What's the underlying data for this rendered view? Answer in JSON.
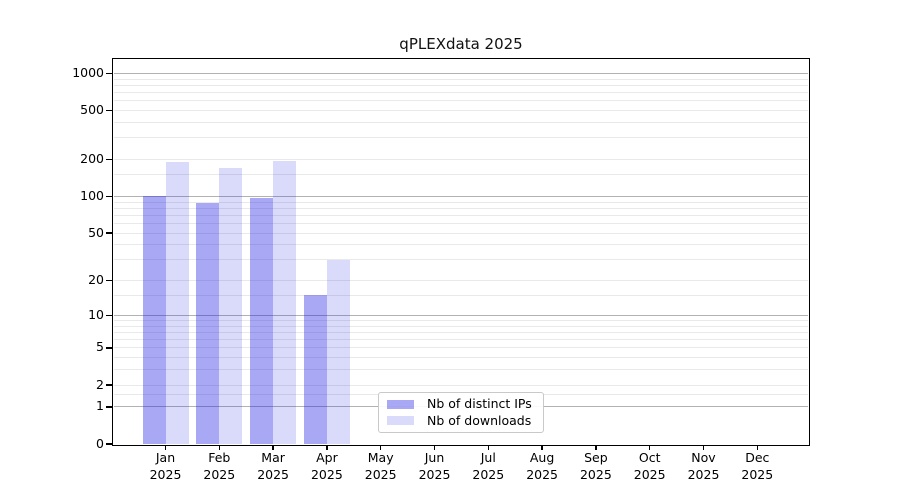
{
  "title": "qPLEXdata 2025",
  "chart_data": {
    "type": "bar",
    "title": "qPLEXdata 2025",
    "categories": [
      "Jan",
      "Feb",
      "Mar",
      "Apr",
      "May",
      "Jun",
      "Jul",
      "Aug",
      "Sep",
      "Oct",
      "Nov",
      "Dec"
    ],
    "year_label": "2025",
    "series": [
      {
        "name": "Nb of distinct IPs",
        "color": "rgba(25,25,230,0.38)",
        "values": [
          100,
          88,
          97,
          15,
          null,
          null,
          null,
          null,
          null,
          null,
          null,
          null
        ]
      },
      {
        "name": "Nb of downloads",
        "color": "rgba(25,25,230,0.16)",
        "values": [
          190,
          172,
          193,
          30,
          null,
          null,
          null,
          null,
          null,
          null,
          null,
          null
        ]
      }
    ],
    "y_ticks": [
      0,
      1,
      2,
      5,
      10,
      20,
      50,
      100,
      200,
      500,
      1000
    ],
    "y_scale": "log10(value+1)",
    "y_axis_max": 1290,
    "grid": {
      "major_values": [
        1,
        10,
        100,
        1000
      ],
      "minor_subs": [
        1.5,
        2,
        3,
        4,
        5,
        6,
        7,
        8,
        9
      ],
      "major_color": "#b2b2b2",
      "minor_color": "#e9e9e9"
    },
    "legend": {
      "position": "inside-bottom-center"
    }
  }
}
